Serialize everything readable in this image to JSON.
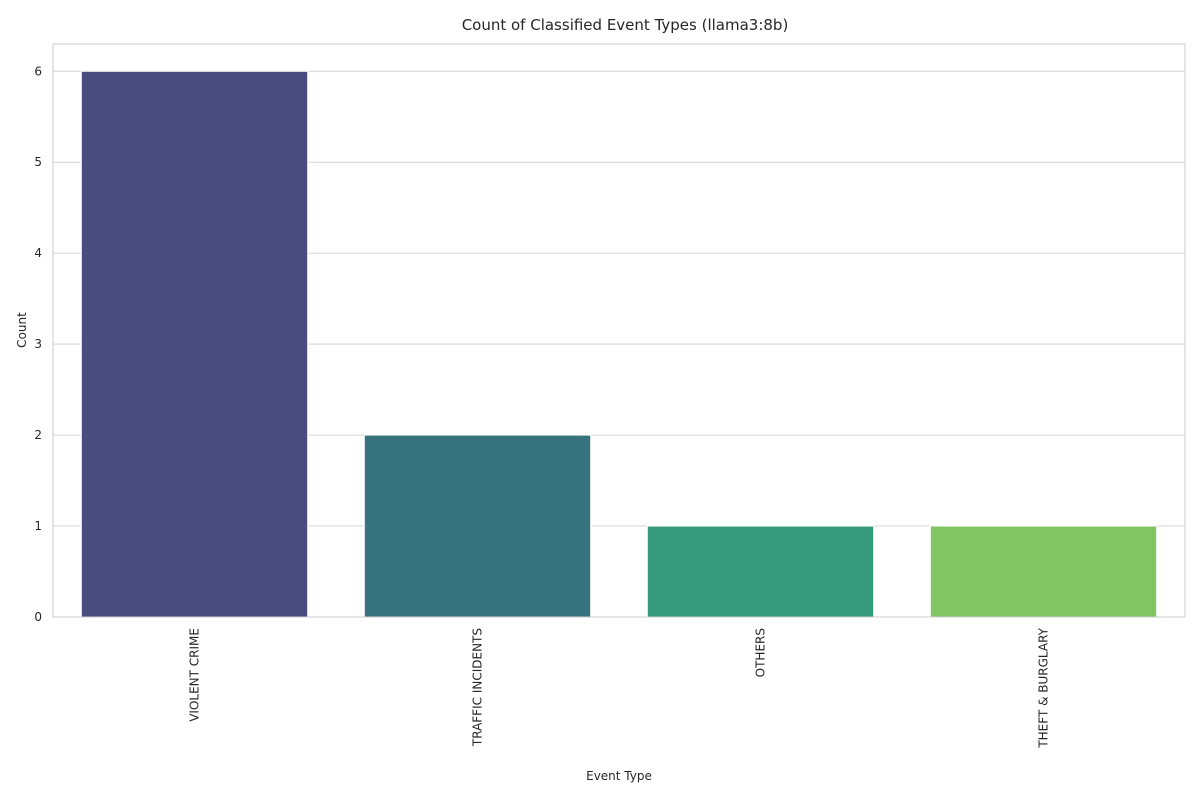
{
  "chart_data": {
    "type": "bar",
    "title": "Count of Classified Event Types (llama3:8b)",
    "xlabel": "Event Type",
    "ylabel": "Count",
    "categories": [
      "VIOLENT CRIME",
      "TRAFFIC INCIDENTS",
      "OTHERS",
      "THEFT & BURGLARY"
    ],
    "values": [
      6,
      2,
      1,
      1
    ],
    "colors": [
      "#484c7f",
      "#37727f",
      "#35997b",
      "#81c462"
    ],
    "ylim": [
      0,
      6.3
    ],
    "yticks": [
      0,
      1,
      2,
      3,
      4,
      5,
      6
    ],
    "grid": true,
    "legend": "none"
  }
}
